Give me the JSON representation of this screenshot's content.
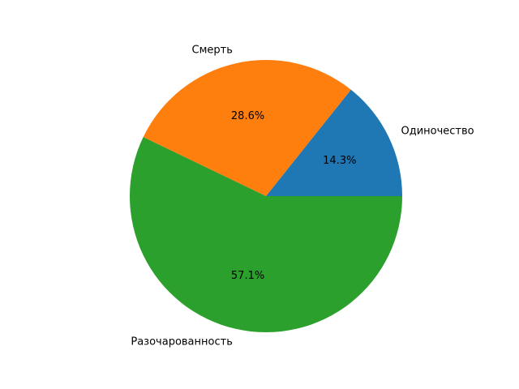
{
  "chart_data": {
    "type": "pie",
    "title": "",
    "start_angle_deg": 0,
    "direction": "counterclockwise",
    "slices": [
      {
        "label": "Одиночество",
        "value": 1,
        "percent_label": "14.3%",
        "color": "#1f77b4"
      },
      {
        "label": "Смерть",
        "value": 2,
        "percent_label": "28.6%",
        "color": "#ff7f0e"
      },
      {
        "label": "Разочарованность",
        "value": 4,
        "percent_label": "57.1%",
        "color": "#2ca02c"
      }
    ]
  }
}
